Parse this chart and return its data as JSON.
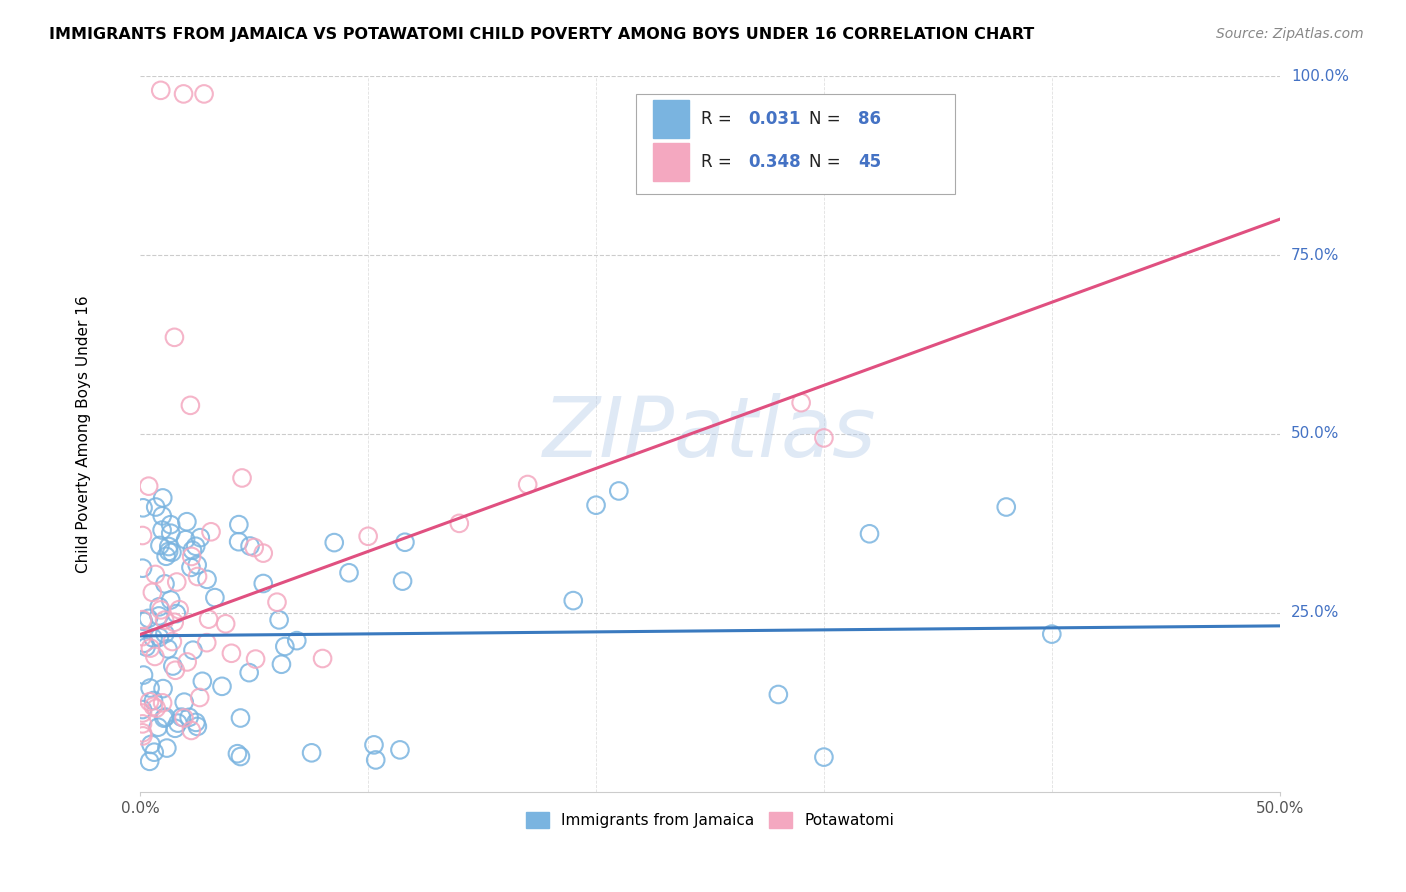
{
  "title": "IMMIGRANTS FROM JAMAICA VS POTAWATOMI CHILD POVERTY AMONG BOYS UNDER 16 CORRELATION CHART",
  "source": "Source: ZipAtlas.com",
  "ylabel": "Child Poverty Among Boys Under 16",
  "xlim": [
    0.0,
    0.5
  ],
  "ylim": [
    0.0,
    1.0
  ],
  "watermark": "ZIPatlas",
  "blue_color": "#7ab4e0",
  "pink_color": "#f4a8c0",
  "blue_line_color": "#3a7abf",
  "pink_line_color": "#e05080",
  "ytick_vals": [
    0.25,
    0.5,
    0.75,
    1.0
  ],
  "ytick_labels": [
    "25.0%",
    "50.0%",
    "75.0%",
    "100.0%"
  ],
  "blue_trend_x": [
    0.0,
    0.5
  ],
  "blue_trend_y": [
    0.218,
    0.232
  ],
  "pink_trend_x": [
    0.0,
    0.5
  ],
  "pink_trend_y": [
    0.22,
    0.8
  ],
  "legend_r1": "0.031",
  "legend_n1": "86",
  "legend_r2": "0.348",
  "legend_n2": "45",
  "legend_color_text": "#4472c4",
  "grid_color": "#cccccc",
  "xlabel_color": "#555555",
  "ylabel_color": "#555555"
}
